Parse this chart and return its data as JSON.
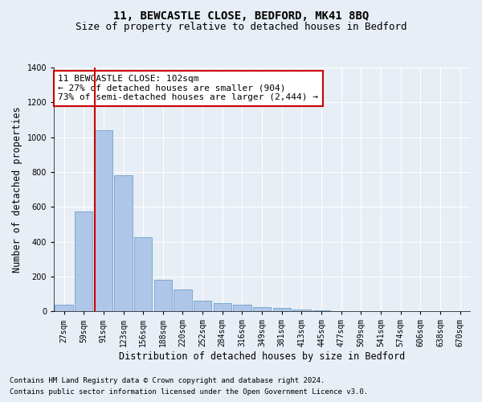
{
  "title": "11, BEWCASTLE CLOSE, BEDFORD, MK41 8BQ",
  "subtitle": "Size of property relative to detached houses in Bedford",
  "xlabel": "Distribution of detached houses by size in Bedford",
  "ylabel": "Number of detached properties",
  "footnote1": "Contains HM Land Registry data © Crown copyright and database right 2024.",
  "footnote2": "Contains public sector information licensed under the Open Government Licence v3.0.",
  "annotation_line1": "11 BEWCASTLE CLOSE: 102sqm",
  "annotation_line2": "← 27% of detached houses are smaller (904)",
  "annotation_line3": "73% of semi-detached houses are larger (2,444) →",
  "bar_values": [
    40,
    575,
    1040,
    780,
    425,
    180,
    125,
    60,
    45,
    40,
    22,
    20,
    12,
    6,
    0,
    0,
    0,
    0,
    0,
    0,
    0
  ],
  "bar_categories": [
    "27sqm",
    "59sqm",
    "91sqm",
    "123sqm",
    "156sqm",
    "188sqm",
    "220sqm",
    "252sqm",
    "284sqm",
    "316sqm",
    "349sqm",
    "381sqm",
    "413sqm",
    "445sqm",
    "477sqm",
    "509sqm",
    "541sqm",
    "574sqm",
    "606sqm",
    "638sqm",
    "670sqm"
  ],
  "bar_color": "#aec6e8",
  "bar_edge_color": "#5a96c8",
  "redline_bar_index": 2,
  "ylim": [
    0,
    1400
  ],
  "yticks": [
    0,
    200,
    400,
    600,
    800,
    1000,
    1200,
    1400
  ],
  "background_color": "#e8eef5",
  "plot_background": "#e8eef5",
  "grid_color": "#ffffff",
  "annotation_box_color": "#ffffff",
  "annotation_box_edge": "#cc0000",
  "redline_color": "#cc0000",
  "title_fontsize": 10,
  "subtitle_fontsize": 9,
  "axis_label_fontsize": 8.5,
  "tick_fontsize": 7,
  "annotation_fontsize": 8,
  "footnote_fontsize": 6.5
}
